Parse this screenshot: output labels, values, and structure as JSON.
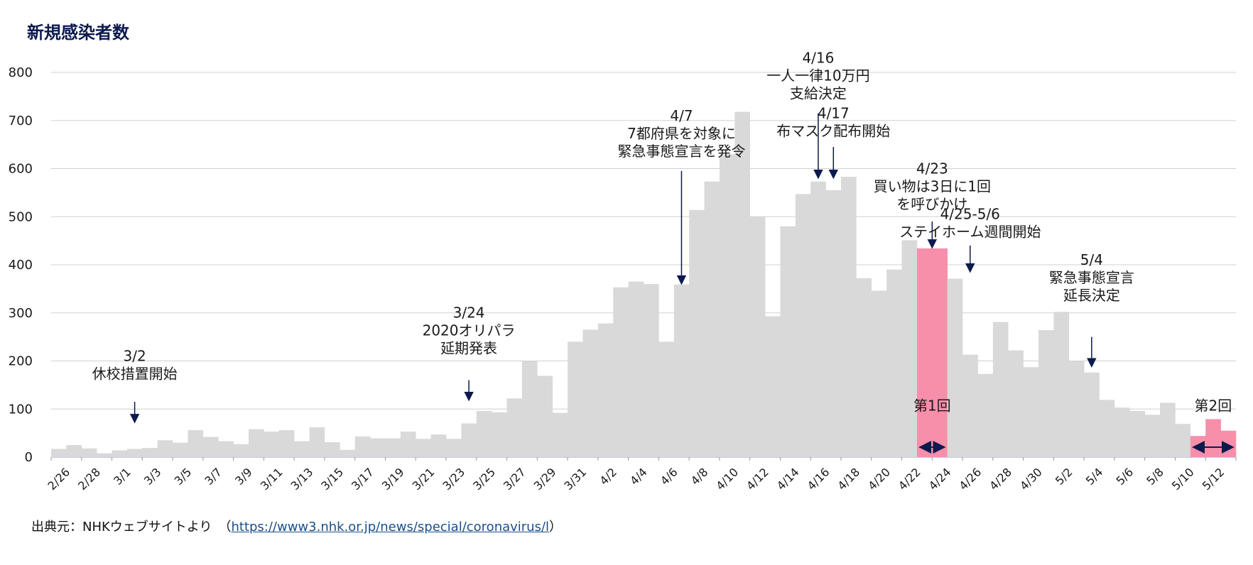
{
  "chart_data": {
    "type": "bar",
    "title": "新規感染者数",
    "ylim": [
      0,
      800
    ],
    "yticks": [
      0,
      100,
      200,
      300,
      400,
      500,
      600,
      700,
      800
    ],
    "grid": true,
    "categories": [
      "2/26",
      "2/27",
      "2/28",
      "2/29",
      "3/1",
      "3/2",
      "3/3",
      "3/4",
      "3/5",
      "3/6",
      "3/7",
      "3/8",
      "3/9",
      "3/10",
      "3/11",
      "3/12",
      "3/13",
      "3/14",
      "3/15",
      "3/16",
      "3/17",
      "3/18",
      "3/19",
      "3/20",
      "3/21",
      "3/22",
      "3/23",
      "3/24",
      "3/25",
      "3/26",
      "3/27",
      "3/28",
      "3/29",
      "3/30",
      "3/31",
      "4/1",
      "4/2",
      "4/3",
      "4/4",
      "4/5",
      "4/6",
      "4/7",
      "4/8",
      "4/9",
      "4/10",
      "4/11",
      "4/12",
      "4/13",
      "4/14",
      "4/15",
      "4/16",
      "4/17",
      "4/18",
      "4/19",
      "4/20",
      "4/21",
      "4/22",
      "4/23",
      "4/24",
      "4/25",
      "4/26",
      "4/27",
      "4/28",
      "4/29",
      "4/30",
      "5/1",
      "5/2",
      "5/3",
      "5/4",
      "5/5",
      "5/6",
      "5/7",
      "5/8",
      "5/9",
      "5/10",
      "5/11",
      "5/12",
      "5/13"
    ],
    "values": [
      17,
      25,
      18,
      8,
      14,
      17,
      19,
      35,
      30,
      56,
      42,
      33,
      27,
      58,
      53,
      56,
      33,
      62,
      31,
      15,
      43,
      39,
      39,
      53,
      38,
      47,
      38,
      70,
      96,
      93,
      122,
      200,
      169,
      92,
      240,
      265,
      278,
      353,
      365,
      360,
      240,
      359,
      514,
      573,
      630,
      718,
      500,
      293,
      480,
      547,
      573,
      555,
      583,
      372,
      346,
      390,
      451,
      434,
      434,
      371,
      213,
      173,
      281,
      222,
      187,
      264,
      302,
      200,
      176,
      119,
      103,
      96,
      88,
      113,
      69,
      44,
      79,
      55
    ],
    "highlight_color": "#f78fab",
    "bar_color": "#d9d9d9",
    "highlights": [
      57,
      58,
      75,
      76,
      77
    ],
    "xtick_labels": [
      "2/26",
      "2/28",
      "3/1",
      "3/3",
      "3/5",
      "3/7",
      "3/9",
      "3/11",
      "3/13",
      "3/15",
      "3/17",
      "3/19",
      "3/21",
      "3/23",
      "3/25",
      "3/27",
      "3/29",
      "3/31",
      "4/2",
      "4/4",
      "4/6",
      "4/8",
      "4/10",
      "4/12",
      "4/14",
      "4/16",
      "4/18",
      "4/20",
      "4/22",
      "4/24",
      "4/26",
      "4/28",
      "4/30",
      "5/2",
      "5/4",
      "5/6",
      "5/8",
      "5/10",
      "5/12"
    ],
    "annotations": [
      {
        "lines": [
          "3/2",
          "休校措置開始"
        ],
        "at_index": 5,
        "text_y_value": 200,
        "arrow_from": 115,
        "arrow_to": 72
      },
      {
        "lines": [
          "3/24",
          "2020オリパラ",
          "延期発表"
        ],
        "at_index": 27,
        "text_y_value": 290,
        "arrow_from": 160,
        "arrow_to": 118
      },
      {
        "lines": [
          "4/7",
          "7都府県を対象に",
          "緊急事態宣言を発令"
        ],
        "at_index": 41,
        "text_y_value": 700,
        "arrow_from": 595,
        "arrow_to": 360
      },
      {
        "lines": [
          "4/16",
          "一人一律10万円",
          "支給決定"
        ],
        "at_index": 50,
        "text_y_value": 820,
        "arrow_from": 715,
        "arrow_to": 580
      },
      {
        "lines": [
          "4/17",
          "布マスク配布開始"
        ],
        "at_index": 51,
        "text_y_value": 705,
        "arrow_from": 645,
        "arrow_to": 580
      },
      {
        "lines": [
          "4/23",
          "買い物は3日に1回",
          "を呼びかけ"
        ],
        "at_index": 57.5,
        "text_y_value": 590,
        "arrow_from": 490,
        "arrow_to": 435
      },
      {
        "lines": [
          "4/25-5/6",
          "ステイホーム週間開始"
        ],
        "at_index": 60,
        "text_y_value": 495,
        "arrow_from": 440,
        "arrow_to": 385
      },
      {
        "lines": [
          "5/4",
          "緊急事態宣言",
          "延長決定"
        ],
        "at_index": 68,
        "text_y_value": 400,
        "arrow_from": 250,
        "arrow_to": 188
      }
    ],
    "periods": [
      {
        "label": "第1回",
        "start_index": 57,
        "end_index": 58
      },
      {
        "label": "第2回",
        "start_index": 75,
        "end_index": 77
      }
    ]
  },
  "footer": {
    "source_prefix": "出典元：NHKウェブサイトより　（",
    "source_link": "https://www3.nhk.or.jp/news/special/coronavirus/l",
    "source_suffix": "）"
  }
}
